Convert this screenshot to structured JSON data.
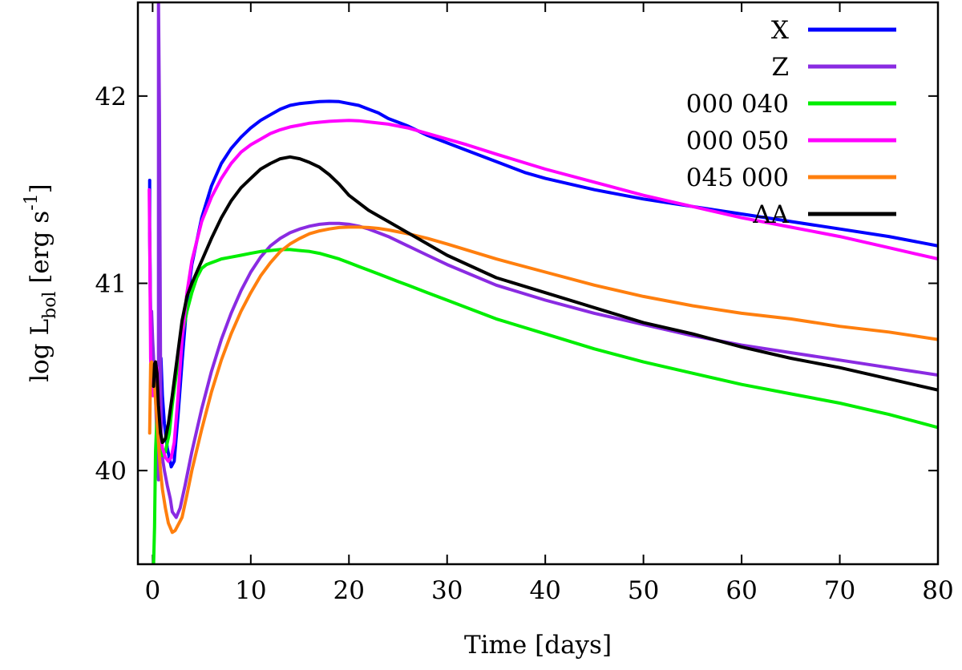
{
  "chart_data": {
    "type": "line",
    "title": "",
    "xlabel": "Time [days]",
    "ylabel_parts": {
      "prefix": "log L",
      "subscript": "bol",
      "unit_start": " [erg s",
      "superscript": "-1",
      "unit_end": "]"
    },
    "xlim": [
      -1.5,
      80
    ],
    "ylim": [
      39.5,
      42.5
    ],
    "xticks": [
      0,
      10,
      20,
      30,
      40,
      50,
      60,
      70,
      80
    ],
    "yticks": [
      40,
      41,
      42
    ],
    "legend_position": "top-right",
    "series": [
      {
        "name": "X",
        "color": "#0000ff",
        "x": [
          -0.3,
          -0.3,
          -0.2,
          -0.1,
          0.0,
          0.2,
          0.5,
          0.7,
          0.85,
          1.0,
          1.2,
          1.5,
          1.9,
          2.2,
          2.6,
          3.0,
          3.5,
          4.0,
          5.0,
          6.0,
          7.0,
          8.0,
          9.0,
          10.0,
          11.0,
          12.0,
          13.0,
          14.0,
          15.0,
          16.0,
          17.0,
          18.0,
          19.0,
          20.0,
          21.0,
          22.0,
          23.0,
          24.0,
          25.0,
          26.0,
          28.0,
          30.0,
          32.0,
          35.0,
          38.0,
          40.0,
          45.0,
          50.0,
          55.0,
          60.0,
          65.0,
          70.0,
          75.0,
          80.0
        ],
        "y": [
          41.55,
          41.3,
          40.8,
          40.5,
          40.45,
          40.4,
          40.38,
          40.6,
          40.6,
          40.4,
          40.25,
          40.12,
          40.02,
          40.05,
          40.3,
          40.58,
          40.9,
          41.1,
          41.35,
          41.52,
          41.64,
          41.72,
          41.78,
          41.83,
          41.87,
          41.9,
          41.93,
          41.95,
          41.96,
          41.965,
          41.97,
          41.972,
          41.97,
          41.96,
          41.95,
          41.93,
          41.91,
          41.88,
          41.86,
          41.84,
          41.79,
          41.75,
          41.71,
          41.65,
          41.59,
          41.56,
          41.5,
          41.45,
          41.41,
          41.37,
          41.33,
          41.29,
          41.25,
          41.2
        ]
      },
      {
        "name": "Z",
        "color": "#8a2be2",
        "x": [
          -0.3,
          -0.2,
          -0.1,
          0.0,
          0.2,
          0.3,
          0.45,
          0.55,
          0.6,
          0.6,
          0.7,
          0.8,
          0.9,
          1.2,
          1.5,
          1.8,
          2.0,
          2.4,
          2.8,
          3.3,
          4.0,
          5.0,
          6.0,
          7.0,
          8.0,
          9.0,
          10.0,
          11.0,
          12.0,
          13.0,
          14.0,
          15.0,
          16.0,
          17.0,
          18.0,
          19.0,
          20.0,
          21.0,
          22.0,
          24.0,
          26.0,
          28.0,
          30.0,
          35.0,
          40.0,
          45.0,
          50.0,
          55.0,
          60.0,
          65.0,
          70.0,
          75.0,
          80.0
        ],
        "y": [
          41.27,
          40.75,
          40.85,
          40.7,
          40.5,
          40.4,
          40.15,
          40.0,
          39.95,
          42.5,
          41.9,
          40.6,
          40.1,
          40.0,
          39.92,
          39.85,
          39.78,
          39.75,
          39.8,
          39.92,
          40.1,
          40.33,
          40.53,
          40.7,
          40.84,
          40.96,
          41.06,
          41.14,
          41.2,
          41.24,
          41.27,
          41.29,
          41.305,
          41.315,
          41.32,
          41.32,
          41.315,
          41.305,
          41.29,
          41.25,
          41.2,
          41.15,
          41.1,
          40.99,
          40.91,
          40.84,
          40.78,
          40.72,
          40.67,
          40.63,
          40.59,
          40.55,
          40.51
        ]
      },
      {
        "name": "000 040",
        "color": "#00ee00",
        "x": [
          0.1,
          0.2,
          0.3,
          0.45,
          0.6,
          0.8,
          1.0,
          1.3,
          1.7,
          2.0,
          2.5,
          3.0,
          3.5,
          4.0,
          4.5,
          5.0,
          5.5,
          6.0,
          6.5,
          7.0,
          8.0,
          9.0,
          10.0,
          11.0,
          12.0,
          13.0,
          14.0,
          15.0,
          16.0,
          17.0,
          18.0,
          19.0,
          20.0,
          21.0,
          22.0,
          23.0,
          24.0,
          25.0,
          26.0,
          28.0,
          30.0,
          35.0,
          40.0,
          45.0,
          50.0,
          55.0,
          60.0,
          65.0,
          70.0,
          75.0,
          80.0
        ],
        "y": [
          39.5,
          39.7,
          40.1,
          40.3,
          40.2,
          40.1,
          40.08,
          40.1,
          40.2,
          40.35,
          40.55,
          40.72,
          40.85,
          40.95,
          41.03,
          41.08,
          41.1,
          41.11,
          41.12,
          41.13,
          41.14,
          41.15,
          41.16,
          41.17,
          41.175,
          41.18,
          41.18,
          41.175,
          41.17,
          41.16,
          41.145,
          41.13,
          41.11,
          41.09,
          41.07,
          41.05,
          41.03,
          41.01,
          40.99,
          40.95,
          40.91,
          40.81,
          40.73,
          40.65,
          40.58,
          40.52,
          40.46,
          40.41,
          40.36,
          40.3,
          40.23
        ]
      },
      {
        "name": "000 050",
        "color": "#ff00ff",
        "x": [
          -0.35,
          -0.3,
          -0.2,
          -0.1,
          0.0,
          0.2,
          0.45,
          0.65,
          0.8,
          1.0,
          1.3,
          1.6,
          1.9,
          2.2,
          2.6,
          3.0,
          3.5,
          4.0,
          5.0,
          6.0,
          7.0,
          8.0,
          9.0,
          10.0,
          11.0,
          12.0,
          13.0,
          14.0,
          15.0,
          16.0,
          17.0,
          18.0,
          19.0,
          20.0,
          21.0,
          22.0,
          24.0,
          26.0,
          28.0,
          30.0,
          32.0,
          35.0,
          40.0,
          45.0,
          50.0,
          55.0,
          60.0,
          65.0,
          70.0,
          75.0,
          80.0
        ],
        "y": [
          41.5,
          41.25,
          40.6,
          40.45,
          40.4,
          40.5,
          40.55,
          40.35,
          40.2,
          40.12,
          40.07,
          40.05,
          40.07,
          40.15,
          40.4,
          40.7,
          40.95,
          41.12,
          41.33,
          41.46,
          41.56,
          41.64,
          41.7,
          41.74,
          41.77,
          41.8,
          41.82,
          41.835,
          41.845,
          41.855,
          41.86,
          41.865,
          41.868,
          41.87,
          41.868,
          41.862,
          41.85,
          41.83,
          41.8,
          41.77,
          41.74,
          41.69,
          41.61,
          41.54,
          41.47,
          41.41,
          41.35,
          41.3,
          41.25,
          41.19,
          41.13
        ]
      },
      {
        "name": "045 000",
        "color": "#ff7f0e",
        "x": [
          -0.3,
          -0.2,
          -0.1,
          0.0,
          0.2,
          0.4,
          0.6,
          0.8,
          1.0,
          1.3,
          1.6,
          2.0,
          2.3,
          2.6,
          3.0,
          3.5,
          4.0,
          5.0,
          6.0,
          7.0,
          8.0,
          9.0,
          10.0,
          11.0,
          12.0,
          13.0,
          14.0,
          15.0,
          16.0,
          17.0,
          18.0,
          19.0,
          20.0,
          21.0,
          22.0,
          23.0,
          24.0,
          26.0,
          28.0,
          30.0,
          35.0,
          40.0,
          45.0,
          50.0,
          55.0,
          60.0,
          65.0,
          70.0,
          75.0,
          80.0
        ],
        "y": [
          40.2,
          40.57,
          40.58,
          40.55,
          40.45,
          40.3,
          40.15,
          40.0,
          39.9,
          39.8,
          39.72,
          39.67,
          39.68,
          39.71,
          39.75,
          39.87,
          40.0,
          40.22,
          40.42,
          40.59,
          40.73,
          40.85,
          40.95,
          41.04,
          41.11,
          41.17,
          41.21,
          41.24,
          41.265,
          41.28,
          41.29,
          41.298,
          41.3,
          41.3,
          41.298,
          41.293,
          41.285,
          41.265,
          41.24,
          41.21,
          41.13,
          41.06,
          40.99,
          40.93,
          40.88,
          40.84,
          40.81,
          40.77,
          40.74,
          40.7
        ]
      },
      {
        "name": "AA",
        "color": "#000000",
        "x": [
          0.1,
          0.2,
          0.3,
          0.45,
          0.6,
          0.8,
          1.0,
          1.3,
          1.6,
          2.0,
          2.5,
          3.0,
          3.5,
          4.0,
          5.0,
          6.0,
          7.0,
          8.0,
          9.0,
          10.0,
          11.0,
          12.0,
          13.0,
          14.0,
          15.0,
          16.0,
          17.0,
          18.0,
          19.0,
          20.0,
          21.0,
          22.0,
          23.0,
          24.0,
          25.0,
          26.0,
          28.0,
          30.0,
          35.0,
          40.0,
          45.0,
          50.0,
          55.0,
          60.0,
          65.0,
          70.0,
          75.0,
          80.0
        ],
        "y": [
          40.45,
          40.57,
          40.58,
          40.52,
          40.35,
          40.2,
          40.15,
          40.17,
          40.25,
          40.4,
          40.6,
          40.8,
          40.93,
          41.0,
          41.12,
          41.24,
          41.35,
          41.44,
          41.51,
          41.56,
          41.61,
          41.64,
          41.665,
          41.675,
          41.665,
          41.645,
          41.62,
          41.58,
          41.53,
          41.47,
          41.43,
          41.39,
          41.36,
          41.33,
          41.3,
          41.27,
          41.21,
          41.15,
          41.03,
          40.95,
          40.87,
          40.79,
          40.73,
          40.66,
          40.6,
          40.55,
          40.49,
          40.43
        ]
      }
    ]
  }
}
